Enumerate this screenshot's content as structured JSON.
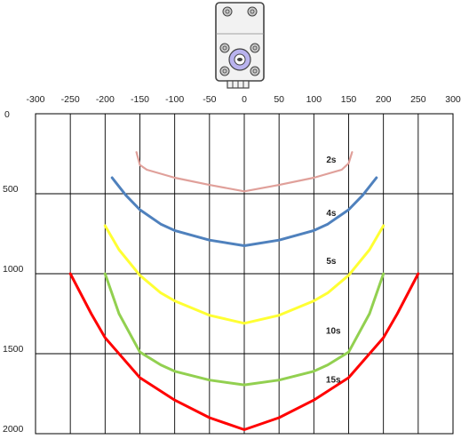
{
  "chart_data": {
    "type": "line",
    "title": "",
    "xlabel": "",
    "ylabel": "",
    "xlim": [
      -300,
      300
    ],
    "ylim": [
      0,
      2000
    ],
    "y_inverted": true,
    "grid": true,
    "x_ticks": [
      "-300",
      "-250",
      "-200",
      "-150",
      "-100",
      "-50",
      "0",
      "50",
      "100",
      "150",
      "200",
      "250",
      "300"
    ],
    "y_ticks": [
      "0",
      "500",
      "1000",
      "1500",
      "2000"
    ],
    "x_tick_values": [
      -300,
      -250,
      -200,
      -150,
      -100,
      -50,
      0,
      50,
      100,
      150,
      200,
      250,
      300
    ],
    "y_tick_values": [
      0,
      500,
      1000,
      1500,
      2000
    ],
    "series": [
      {
        "name": "2s",
        "color": "#e0a09a",
        "x": [
          -155,
          -150,
          -140,
          -100,
          -50,
          0,
          50,
          100,
          140,
          150,
          155
        ],
        "y": [
          240,
          320,
          350,
          400,
          445,
          485,
          445,
          400,
          350,
          310,
          240
        ]
      },
      {
        "name": "4s",
        "color": "#4f81bd",
        "x": [
          -190,
          -170,
          -150,
          -120,
          -100,
          -50,
          0,
          50,
          100,
          120,
          150,
          170,
          190
        ],
        "y": [
          400,
          510,
          600,
          690,
          730,
          790,
          825,
          790,
          730,
          690,
          600,
          510,
          400
        ]
      },
      {
        "name": "5s",
        "color": "#ffff33",
        "x": [
          -200,
          -180,
          -150,
          -120,
          -100,
          -50,
          0,
          50,
          100,
          120,
          150,
          180,
          200
        ],
        "y": [
          700,
          850,
          1010,
          1120,
          1170,
          1260,
          1310,
          1260,
          1170,
          1120,
          1010,
          850,
          700
        ]
      },
      {
        "name": "10s",
        "color": "#92d050",
        "x": [
          -200,
          -180,
          -150,
          -120,
          -100,
          -50,
          0,
          50,
          100,
          120,
          150,
          180,
          200
        ],
        "y": [
          1000,
          1250,
          1490,
          1570,
          1610,
          1665,
          1695,
          1665,
          1610,
          1570,
          1490,
          1250,
          1000
        ]
      },
      {
        "name": "15s",
        "color": "#ff0000",
        "x": [
          -250,
          -220,
          -200,
          -150,
          -100,
          -50,
          0,
          50,
          100,
          150,
          200,
          220,
          250
        ],
        "y": [
          1000,
          1250,
          1400,
          1650,
          1790,
          1900,
          1975,
          1900,
          1790,
          1650,
          1400,
          1250,
          1000
        ]
      }
    ],
    "series_label_positions": [
      {
        "name": "2s",
        "x": 125,
        "y": 305
      },
      {
        "name": "4s",
        "x": 125,
        "y": 640
      },
      {
        "name": "5s",
        "x": 125,
        "y": 940
      },
      {
        "name": "10s",
        "x": 128,
        "y": 1375
      },
      {
        "name": "15s",
        "x": 128,
        "y": 1680
      }
    ]
  },
  "device_image": {
    "icon": "sensor-device-icon",
    "colors": {
      "body": "#f2f2f2",
      "outline": "#444444",
      "screw": "#c8c8c8",
      "lens": "#b9b3ee"
    }
  }
}
